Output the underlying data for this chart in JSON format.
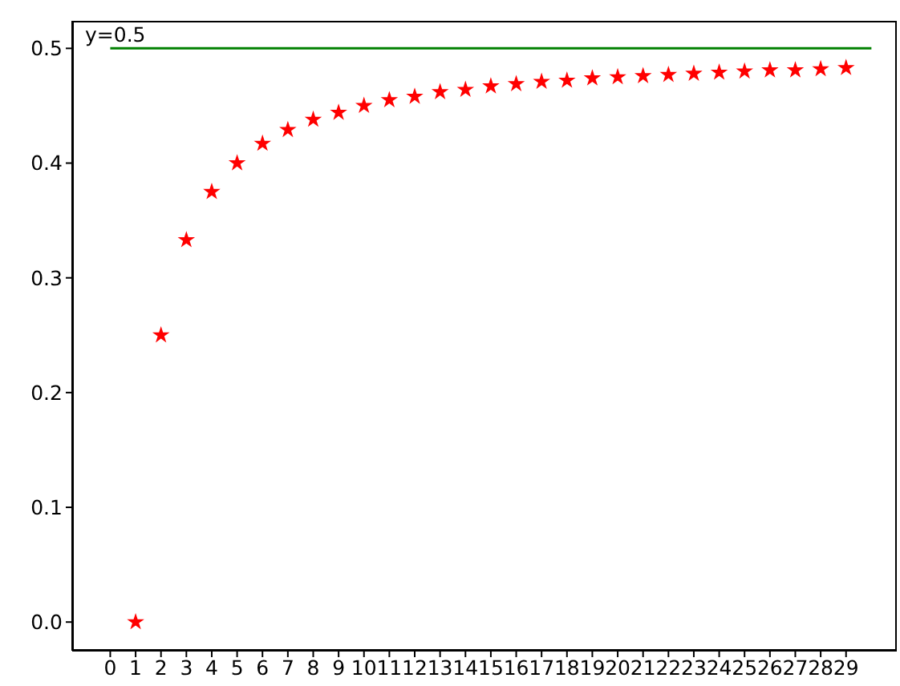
{
  "chart_data": {
    "type": "scatter",
    "x": [
      1,
      2,
      3,
      4,
      5,
      6,
      7,
      8,
      9,
      10,
      11,
      12,
      13,
      14,
      15,
      16,
      17,
      18,
      19,
      20,
      21,
      22,
      23,
      24,
      25,
      26,
      27,
      28,
      29
    ],
    "series": [
      {
        "color": "#ff0000",
        "marker": "star",
        "values": [
          0,
          0.25,
          0.333,
          0.375,
          0.4,
          0.417,
          0.429,
          0.438,
          0.444,
          0.45,
          0.455,
          0.458,
          0.462,
          0.464,
          0.467,
          0.469,
          0.471,
          0.472,
          0.474,
          0.475,
          0.476,
          0.477,
          0.478,
          0.479,
          0.48,
          0.481,
          0.481,
          0.482,
          0.483
        ]
      },
      {
        "type": "line",
        "color": "#008000",
        "x": [
          0,
          30
        ],
        "values": [
          0.5,
          0.5
        ],
        "marker": "none",
        "line_style": "solid"
      }
    ],
    "annotations": [
      "y=0.5"
    ],
    "xlim": [
      -1.5,
      31
    ],
    "xticks": [
      0,
      1,
      2,
      3,
      4,
      5,
      6,
      7,
      8,
      9,
      10,
      11,
      12,
      13,
      14,
      15,
      16,
      17,
      18,
      19,
      20,
      21,
      22,
      23,
      24,
      25,
      26,
      27,
      28,
      29
    ],
    "ylim": [
      -0.025,
      0.524
    ],
    "yticks": [
      {
        "value": 0,
        "label": "0.0"
      },
      {
        "value": 0.1,
        "label": "0.1"
      },
      {
        "value": 0.2,
        "label": "0.2"
      },
      {
        "value": 0.3,
        "label": "0.3"
      },
      {
        "value": 0.4,
        "label": "0.4"
      },
      {
        "value": 0.5,
        "label": "0.5"
      }
    ],
    "grid": false
  }
}
